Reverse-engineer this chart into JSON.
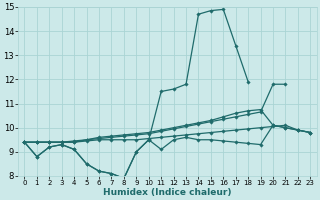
{
  "xlabel": "Humidex (Indice chaleur)",
  "xlim": [
    -0.5,
    23.5
  ],
  "ylim": [
    8,
    15
  ],
  "xticks": [
    0,
    1,
    2,
    3,
    4,
    5,
    6,
    7,
    8,
    9,
    10,
    11,
    12,
    13,
    14,
    15,
    16,
    17,
    18,
    19,
    20,
    21,
    22,
    23
  ],
  "yticks": [
    8,
    9,
    10,
    11,
    12,
    13,
    14,
    15
  ],
  "bg_color": "#cce9e9",
  "grid_color": "#aad4d4",
  "line_color": "#1f6b6b",
  "series": [
    [
      9.4,
      8.8,
      9.2,
      9.3,
      9.1,
      8.5,
      8.2,
      8.1,
      7.9,
      9.0,
      9.5,
      11.5,
      11.6,
      11.8,
      14.7,
      14.85,
      14.9,
      13.4,
      11.9,
      null,
      null,
      null,
      null,
      null
    ],
    [
      9.4,
      8.8,
      9.2,
      9.3,
      9.1,
      8.5,
      8.2,
      8.1,
      7.9,
      9.0,
      9.5,
      9.1,
      9.5,
      9.6,
      9.5,
      9.5,
      9.45,
      9.4,
      9.35,
      9.3,
      10.1,
      10.0,
      9.9,
      9.8
    ],
    [
      9.4,
      9.4,
      9.4,
      9.4,
      9.4,
      9.5,
      9.6,
      9.65,
      9.7,
      9.75,
      9.8,
      9.9,
      10.0,
      10.1,
      10.2,
      10.3,
      10.45,
      10.6,
      10.7,
      10.75,
      10.1,
      10.0,
      9.9,
      9.8
    ],
    [
      9.4,
      9.4,
      9.4,
      9.4,
      9.45,
      9.5,
      9.55,
      9.6,
      9.65,
      9.7,
      9.75,
      9.85,
      9.95,
      10.05,
      10.15,
      10.25,
      10.35,
      10.45,
      10.55,
      10.65,
      11.8,
      11.8,
      null,
      null
    ],
    [
      9.4,
      9.4,
      9.4,
      9.4,
      9.4,
      9.45,
      9.5,
      9.5,
      9.5,
      9.5,
      9.55,
      9.6,
      9.65,
      9.7,
      9.75,
      9.8,
      9.85,
      9.9,
      9.95,
      10.0,
      10.05,
      10.1,
      9.9,
      9.8
    ]
  ]
}
